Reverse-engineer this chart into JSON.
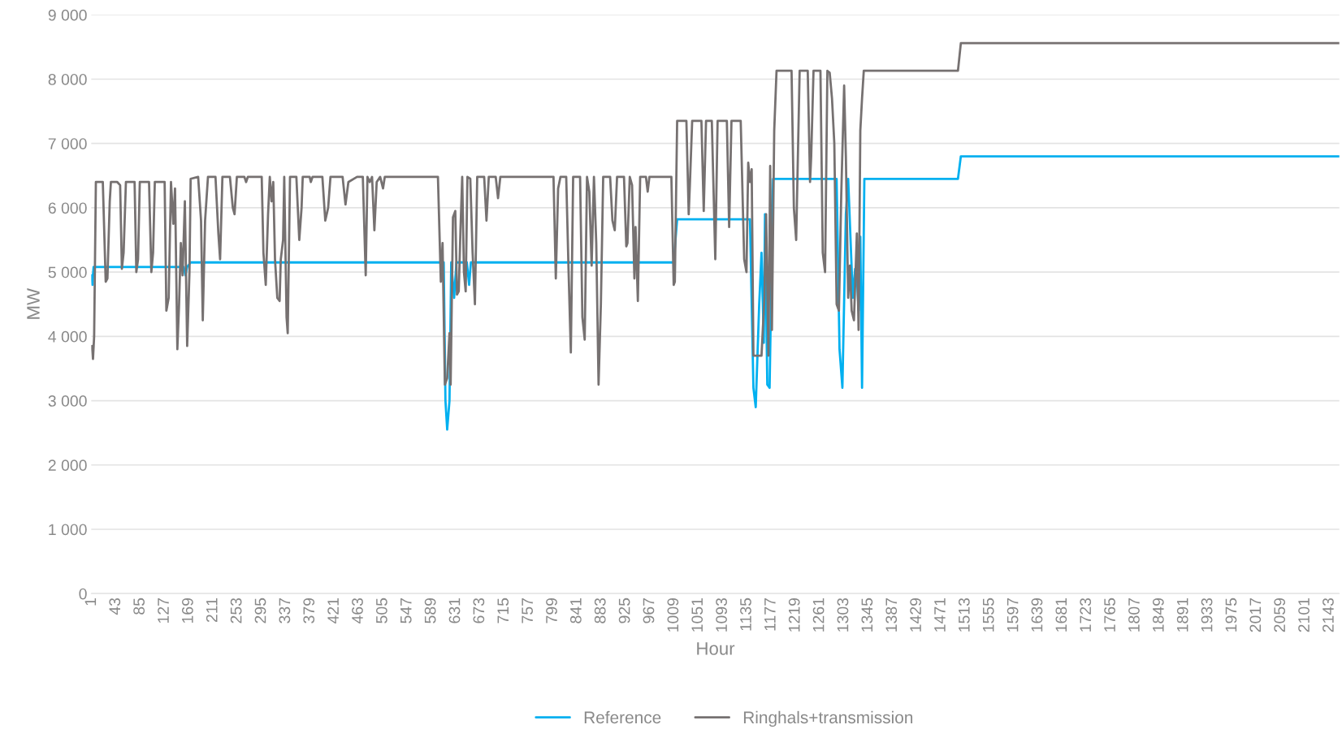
{
  "chart_data": {
    "type": "line",
    "xlabel": "Hour",
    "ylabel": "MW",
    "xlim": [
      0,
      2160
    ],
    "xticks": [
      1,
      43,
      85,
      127,
      169,
      211,
      253,
      295,
      337,
      379,
      421,
      463,
      505,
      547,
      589,
      631,
      673,
      715,
      757,
      799,
      841,
      883,
      925,
      967,
      1009,
      1051,
      1093,
      1135,
      1177,
      1219,
      1261,
      1303,
      1345,
      1387,
      1429,
      1471,
      1513,
      1555,
      1597,
      1639,
      1681,
      1723,
      1765,
      1807,
      1849,
      1891,
      1933,
      1975,
      2017,
      2059,
      2101,
      2143
    ],
    "ylim": [
      0,
      9000
    ],
    "yticks": [
      0,
      {
        "value": 1000,
        "label": "1 000"
      },
      {
        "value": 2000,
        "label": "2 000"
      },
      {
        "value": 3000,
        "label": "3 000"
      },
      {
        "value": 4000,
        "label": "4 000"
      },
      {
        "value": 5000,
        "label": "5 000"
      },
      {
        "value": 6000,
        "label": "6 000"
      },
      {
        "value": 7000,
        "label": "7 000"
      },
      {
        "value": 8000,
        "label": "8 000"
      },
      {
        "value": 9000,
        "label": "9 000"
      }
    ],
    "grid": "y",
    "legend": "bottom",
    "marker": "none",
    "line_style": "solid",
    "series": [
      {
        "name": "Reference",
        "color": "#00b0f0",
        "x": [
          1,
          2,
          4,
          160,
          163,
          166,
          172,
          610,
          613,
          616,
          620,
          623,
          628,
          632,
          650,
          654,
          657,
          1008,
          1014,
          1140,
          1146,
          1150,
          1156,
          1160,
          1164,
          1166,
          1170,
          1174,
          1180,
          1290,
          1295,
          1300,
          1306,
          1310,
          1318,
          1322,
          1325,
          1328,
          1331,
          1334,
          1338,
          1500,
          1505,
          2160
        ],
        "values": [
          4950,
          4800,
          5080,
          5080,
          4950,
          5080,
          5150,
          5150,
          3000,
          2550,
          3000,
          5150,
          4600,
          5150,
          5150,
          4800,
          5150,
          5150,
          5820,
          5820,
          3200,
          2900,
          4500,
          5300,
          3900,
          5900,
          3250,
          3200,
          6450,
          6450,
          3800,
          3200,
          5900,
          6450,
          4600,
          5050,
          4950,
          4400,
          5550,
          3200,
          6450,
          6450,
          6800,
          6800
        ]
      },
      {
        "name": "Ringhals+transmission",
        "color": "#767171",
        "x": [
          1,
          3,
          5,
          8,
          20,
          25,
          28,
          32,
          34,
          45,
          50,
          53,
          56,
          60,
          75,
          78,
          81,
          84,
          100,
          104,
          107,
          110,
          127,
          130,
          134,
          138,
          142,
          145,
          149,
          152,
          155,
          158,
          162,
          166,
          170,
          172,
          185,
          190,
          193,
          197,
          202,
          215,
          220,
          223,
          227,
          240,
          245,
          248,
          252,
          265,
          268,
          271,
          295,
          298,
          302,
          306,
          309,
          312,
          315,
          318,
          322,
          326,
          328,
          332,
          334,
          338,
          340,
          344,
          355,
          360,
          364,
          366,
          378,
          380,
          383,
          400,
          405,
          410,
          414,
          435,
          440,
          445,
          460,
          470,
          475,
          478,
          482,
          486,
          490,
          494,
          500,
          505,
          508,
          600,
          605,
          608,
          612,
          616,
          620,
          622,
          626,
          630,
          633,
          636,
          639,
          642,
          645,
          648,
          651,
          656,
          660,
          664,
          668,
          680,
          684,
          688,
          700,
          704,
          708,
          800,
          804,
          808,
          812,
          822,
          826,
          830,
          834,
          846,
          850,
          854,
          858,
          862,
          866,
          870,
          874,
          878,
          882,
          886,
          898,
          902,
          906,
          910,
          922,
          926,
          928,
          932,
          936,
          940,
          942,
          946,
          950,
          960,
          963,
          966,
          1004,
          1008,
          1010,
          1014,
          1030,
          1034,
          1036,
          1040,
          1056,
          1060,
          1064,
          1074,
          1080,
          1084,
          1100,
          1104,
          1108,
          1124,
          1130,
          1134,
          1137,
          1140,
          1143,
          1146,
          1160,
          1165,
          1168,
          1172,
          1175,
          1178,
          1182,
          1186,
          1212,
          1216,
          1220,
          1226,
          1240,
          1244,
          1246,
          1250,
          1262,
          1266,
          1270,
          1274,
          1278,
          1282,
          1286,
          1290,
          1294,
          1298,
          1303,
          1306,
          1310,
          1313,
          1316,
          1320,
          1325,
          1328,
          1331,
          1334,
          1337,
          1500,
          1505,
          2160
        ],
        "values": [
          3850,
          3650,
          4000,
          6400,
          6400,
          4850,
          4900,
          6100,
          6400,
          6400,
          6350,
          5050,
          5300,
          6400,
          6400,
          5000,
          5200,
          6400,
          6400,
          5000,
          5300,
          6400,
          6400,
          4400,
          4600,
          6400,
          5750,
          6300,
          3800,
          4500,
          5450,
          4950,
          6100,
          3850,
          5000,
          6450,
          6480,
          5800,
          4250,
          5800,
          6480,
          6480,
          5600,
          5200,
          6480,
          6480,
          6000,
          5900,
          6480,
          6480,
          6400,
          6480,
          6480,
          5300,
          4800,
          5900,
          6480,
          6100,
          6400,
          5200,
          4600,
          4550,
          5200,
          5500,
          6480,
          4300,
          4050,
          6480,
          6480,
          5500,
          6000,
          6480,
          6480,
          6400,
          6480,
          6480,
          5800,
          6000,
          6480,
          6480,
          6050,
          6400,
          6480,
          6480,
          4950,
          6480,
          6400,
          6480,
          5650,
          6400,
          6480,
          6300,
          6480,
          6480,
          4850,
          5450,
          3250,
          3350,
          4050,
          3250,
          5850,
          5950,
          4650,
          4700,
          5650,
          6480,
          5000,
          4700,
          6480,
          6450,
          5300,
          4500,
          6480,
          6480,
          5800,
          6480,
          6480,
          6150,
          6480,
          6480,
          4900,
          6300,
          6480,
          6480,
          5050,
          3750,
          6480,
          6480,
          4300,
          3950,
          6480,
          6250,
          5100,
          6480,
          5450,
          3250,
          4500,
          6480,
          6480,
          5800,
          5650,
          6480,
          6480,
          5400,
          5450,
          6480,
          6350,
          4900,
          5700,
          4550,
          6480,
          6480,
          6250,
          6480,
          6480,
          4800,
          4850,
          7350,
          7350,
          5900,
          6350,
          7350,
          7350,
          5950,
          7350,
          7350,
          5200,
          7350,
          7350,
          5700,
          7350,
          7350,
          5200,
          5000,
          6700,
          6400,
          6600,
          3700,
          3700,
          4600,
          5900,
          3700,
          6650,
          4100,
          7200,
          8130,
          8130,
          6000,
          5500,
          8130,
          8130,
          6400,
          6800,
          8130,
          8130,
          5300,
          5000,
          8130,
          8100,
          7700,
          7000,
          4500,
          4400,
          6200,
          7900,
          6800,
          4600,
          5100,
          4400,
          4250,
          5600,
          4100,
          7200,
          7700,
          8130,
          8130,
          8560,
          8560
        ]
      }
    ]
  }
}
